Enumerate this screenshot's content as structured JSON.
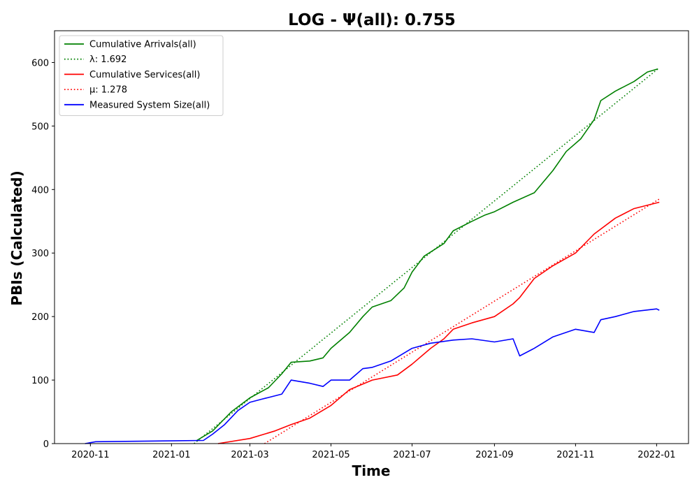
{
  "chart_data": {
    "type": "line",
    "title": "LOG -  Ψ(all): 0.755",
    "xlabel": "Time",
    "ylabel": "PBIs (Calculated)",
    "xlim": [
      "2020-10-05",
      "2022-01-25"
    ],
    "ylim": [
      0,
      650
    ],
    "x_ticks": [
      "2020-11",
      "2021-01",
      "2021-03",
      "2021-05",
      "2021-07",
      "2021-09",
      "2021-11",
      "2022-01"
    ],
    "y_ticks": [
      0,
      100,
      200,
      300,
      400,
      500,
      600
    ],
    "grid": false,
    "legend_position": "top-left",
    "series": [
      {
        "name": "Cumulative Arrivals(all)",
        "color": "#008000",
        "style": "solid",
        "points": [
          [
            "2021-01-20",
            5
          ],
          [
            "2021-02-01",
            20
          ],
          [
            "2021-02-15",
            50
          ],
          [
            "2021-03-01",
            72
          ],
          [
            "2021-03-15",
            88
          ],
          [
            "2021-03-25",
            110
          ],
          [
            "2021-04-01",
            128
          ],
          [
            "2021-04-15",
            130
          ],
          [
            "2021-04-25",
            135
          ],
          [
            "2021-05-01",
            150
          ],
          [
            "2021-05-15",
            175
          ],
          [
            "2021-05-25",
            200
          ],
          [
            "2021-06-01",
            215
          ],
          [
            "2021-06-15",
            225
          ],
          [
            "2021-06-25",
            245
          ],
          [
            "2021-07-01",
            270
          ],
          [
            "2021-07-10",
            295
          ],
          [
            "2021-07-25",
            315
          ],
          [
            "2021-08-01",
            335
          ],
          [
            "2021-08-15",
            350
          ],
          [
            "2021-08-25",
            360
          ],
          [
            "2021-09-01",
            365
          ],
          [
            "2021-09-15",
            380
          ],
          [
            "2021-10-01",
            395
          ],
          [
            "2021-10-15",
            430
          ],
          [
            "2021-10-25",
            460
          ],
          [
            "2021-11-05",
            480
          ],
          [
            "2021-11-15",
            510
          ],
          [
            "2021-11-20",
            540
          ],
          [
            "2021-12-01",
            555
          ],
          [
            "2021-12-15",
            570
          ],
          [
            "2021-12-25",
            585
          ],
          [
            "2022-01-02",
            590
          ]
        ]
      },
      {
        "name": "λ: 1.692",
        "color": "#008000",
        "style": "dotted",
        "points": [
          [
            "2021-01-18",
            0
          ],
          [
            "2022-01-02",
            590
          ]
        ]
      },
      {
        "name": "Cumulative Services(all)",
        "color": "#ff0000",
        "style": "solid",
        "points": [
          [
            "2021-02-05",
            0
          ],
          [
            "2021-03-01",
            8
          ],
          [
            "2021-03-20",
            20
          ],
          [
            "2021-04-01",
            30
          ],
          [
            "2021-04-15",
            40
          ],
          [
            "2021-05-01",
            60
          ],
          [
            "2021-05-15",
            85
          ],
          [
            "2021-06-01",
            100
          ],
          [
            "2021-06-20",
            108
          ],
          [
            "2021-07-01",
            125
          ],
          [
            "2021-07-15",
            150
          ],
          [
            "2021-07-25",
            165
          ],
          [
            "2021-08-01",
            180
          ],
          [
            "2021-08-15",
            190
          ],
          [
            "2021-09-01",
            200
          ],
          [
            "2021-09-15",
            220
          ],
          [
            "2021-09-20",
            230
          ],
          [
            "2021-10-01",
            260
          ],
          [
            "2021-10-15",
            280
          ],
          [
            "2021-11-01",
            300
          ],
          [
            "2021-11-15",
            330
          ],
          [
            "2021-12-01",
            355
          ],
          [
            "2021-12-15",
            370
          ],
          [
            "2022-01-03",
            380
          ]
        ]
      },
      {
        "name": "μ: 1.278",
        "color": "#ff0000",
        "style": "dotted",
        "points": [
          [
            "2021-03-12",
            0
          ],
          [
            "2022-01-03",
            385
          ]
        ]
      },
      {
        "name": "Measured System Size(all)",
        "color": "#0000ff",
        "style": "solid",
        "points": [
          [
            "2020-10-28",
            0
          ],
          [
            "2020-11-05",
            3
          ],
          [
            "2021-01-25",
            5
          ],
          [
            "2021-02-01",
            15
          ],
          [
            "2021-02-10",
            30
          ],
          [
            "2021-02-20",
            52
          ],
          [
            "2021-03-01",
            65
          ],
          [
            "2021-03-10",
            70
          ],
          [
            "2021-03-25",
            78
          ],
          [
            "2021-04-01",
            100
          ],
          [
            "2021-04-15",
            95
          ],
          [
            "2021-04-25",
            90
          ],
          [
            "2021-05-01",
            100
          ],
          [
            "2021-05-15",
            100
          ],
          [
            "2021-05-25",
            118
          ],
          [
            "2021-06-01",
            120
          ],
          [
            "2021-06-15",
            130
          ],
          [
            "2021-07-01",
            150
          ],
          [
            "2021-07-15",
            158
          ],
          [
            "2021-08-01",
            163
          ],
          [
            "2021-08-15",
            165
          ],
          [
            "2021-09-01",
            160
          ],
          [
            "2021-09-15",
            165
          ],
          [
            "2021-09-20",
            138
          ],
          [
            "2021-10-01",
            150
          ],
          [
            "2021-10-15",
            168
          ],
          [
            "2021-11-01",
            180
          ],
          [
            "2021-11-15",
            175
          ],
          [
            "2021-11-20",
            195
          ],
          [
            "2021-12-01",
            200
          ],
          [
            "2021-12-15",
            208
          ],
          [
            "2022-01-01",
            212
          ],
          [
            "2022-01-03",
            210
          ]
        ]
      }
    ]
  }
}
